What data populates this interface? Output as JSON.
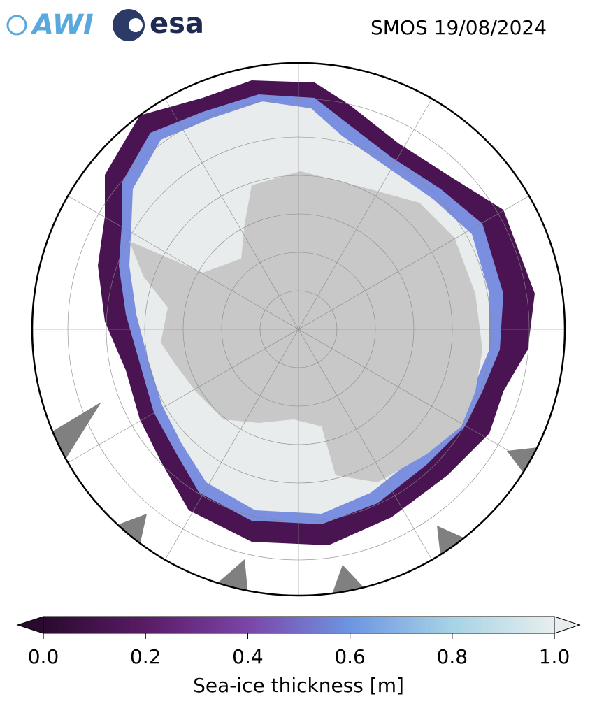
{
  "header": {
    "logo_left": "AWI",
    "logo_right": "esa",
    "title": "SMOS 19/08/2024"
  },
  "colorbar": {
    "label": "Sea-ice thickness [m]",
    "range": [
      0,
      1
    ],
    "ticks": [
      {
        "value": 0,
        "label": "0.0"
      },
      0.2,
      0.4,
      0.6,
      0.8,
      {
        "value": 1,
        "label": "1.0"
      }
    ],
    "colors": [
      "#2a0a2e",
      "#5a1b66",
      "#7b45a8",
      "#6d95e2",
      "#a6d3e6",
      "#e8eeee"
    ]
  }
}
